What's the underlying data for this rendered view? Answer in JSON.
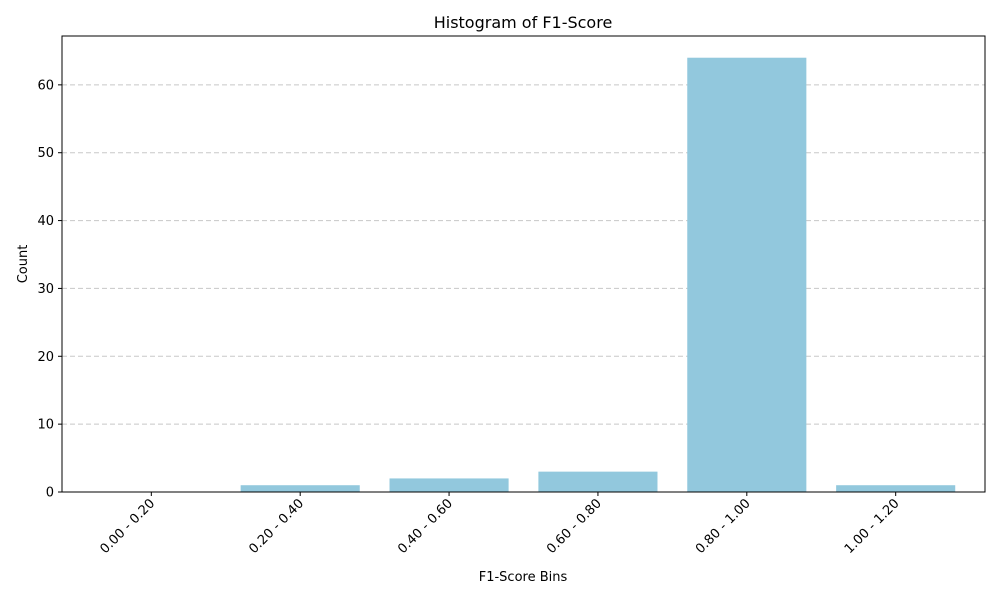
{
  "chart_data": {
    "type": "bar",
    "title": "Histogram of F1-Score",
    "xlabel": "F1-Score Bins",
    "ylabel": "Count",
    "categories": [
      "0.00 - 0.20",
      "0.20 - 0.40",
      "0.40 - 0.60",
      "0.60 - 0.80",
      "0.80 - 1.00",
      "1.00 - 1.20"
    ],
    "values": [
      0,
      1,
      2,
      3,
      64,
      1
    ],
    "ylim": [
      0,
      67.2
    ],
    "yticks": [
      0,
      10,
      20,
      30,
      40,
      50,
      60
    ],
    "grid": "y",
    "bar_color": "#92c8dd"
  }
}
